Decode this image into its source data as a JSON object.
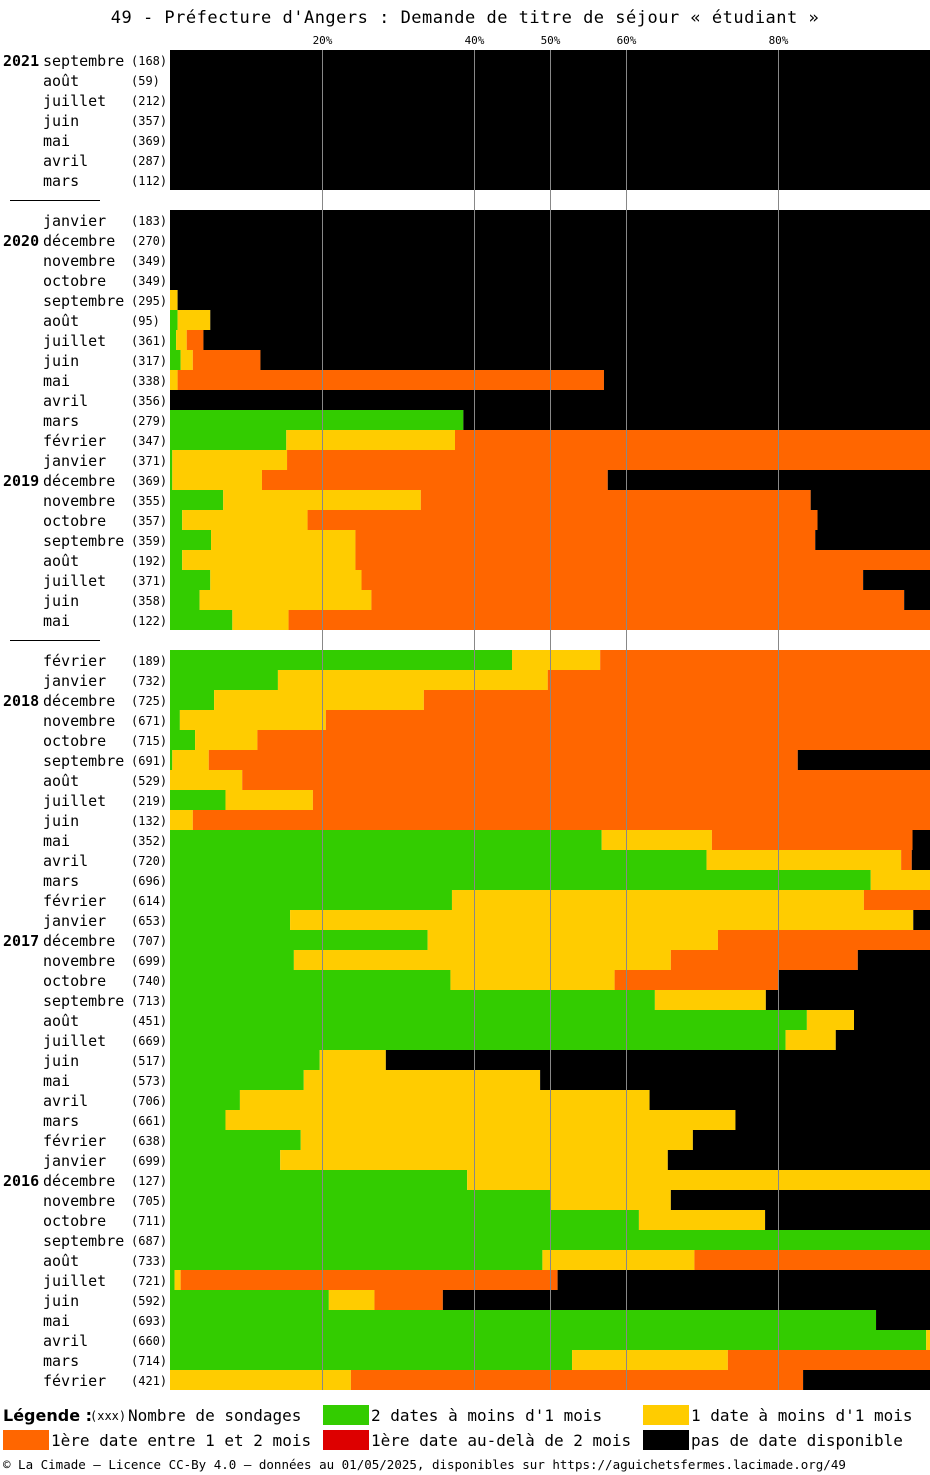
{
  "title": "49 - Préfecture d'Angers : Demande de titre de séjour « étudiant »",
  "colors": {
    "green": "#33cc00",
    "yellow": "#ffcc00",
    "orange": "#ff6600",
    "red": "#dd0000",
    "black": "#000000"
  },
  "legend": {
    "title": "Légende :",
    "count_marker": "(xxx)",
    "count_label": "Nombre de sondages",
    "items": [
      {
        "key": "green",
        "label": "2 dates à moins d'1 mois"
      },
      {
        "key": "yellow",
        "label": "1 date à moins d'1 mois"
      },
      {
        "key": "orange",
        "label": "1ère date entre 1 et 2 mois"
      },
      {
        "key": "red",
        "label": "1ère date au-delà de 2 mois"
      },
      {
        "key": "black",
        "label": "pas de date disponible"
      }
    ]
  },
  "footer": "© La Cimade – Licence CC-By 4.0 – données au 01/05/2025, disponibles sur https://aguichetsfermes.lacimade.org/49",
  "chart_data": {
    "type": "bar",
    "orientation": "horizontal-stacked-percent",
    "xlim": [
      0,
      100
    ],
    "xticks": [
      20,
      40,
      50,
      60,
      80
    ],
    "xtick_labels": [
      "20%",
      "40%",
      "50%",
      "60%",
      "80%"
    ],
    "grid": true,
    "series_order": [
      "green",
      "yellow",
      "orange",
      "red",
      "black"
    ],
    "rows": [
      {
        "year": "2021",
        "month": "septembre",
        "n": "(168)",
        "pct": [
          0,
          0,
          0,
          0,
          100
        ]
      },
      {
        "year": "",
        "month": "août",
        "n": "(59)",
        "pct": [
          0,
          0,
          0,
          0,
          100
        ]
      },
      {
        "year": "",
        "month": "juillet",
        "n": "(212)",
        "pct": [
          0,
          0,
          0,
          0,
          100
        ]
      },
      {
        "year": "",
        "month": "juin",
        "n": "(357)",
        "pct": [
          0,
          0,
          0,
          0,
          100
        ]
      },
      {
        "year": "",
        "month": "mai",
        "n": "(369)",
        "pct": [
          0,
          0,
          0,
          0,
          100
        ]
      },
      {
        "year": "",
        "month": "avril",
        "n": "(287)",
        "pct": [
          0,
          0,
          0,
          0,
          100
        ]
      },
      {
        "year": "",
        "month": "mars",
        "n": "(112)",
        "pct": [
          0,
          0,
          0,
          0,
          100
        ]
      },
      {
        "gap": true
      },
      {
        "year": "",
        "month": "janvier",
        "n": "(183)",
        "pct": [
          0,
          0,
          0,
          0,
          100
        ]
      },
      {
        "year": "2020",
        "month": "décembre",
        "n": "(270)",
        "pct": [
          0,
          0,
          0,
          0,
          100
        ]
      },
      {
        "year": "",
        "month": "novembre",
        "n": "(349)",
        "pct": [
          0,
          0,
          0,
          0,
          100
        ]
      },
      {
        "year": "",
        "month": "octobre",
        "n": "(349)",
        "pct": [
          0,
          0,
          0,
          0,
          100
        ]
      },
      {
        "year": "",
        "month": "septembre",
        "n": "(295)",
        "pct": [
          0,
          1,
          0,
          0,
          99
        ]
      },
      {
        "year": "",
        "month": "août",
        "n": "(95)",
        "pct": [
          1,
          4.3,
          0,
          0,
          94.7
        ]
      },
      {
        "year": "",
        "month": "juillet",
        "n": "(361)",
        "pct": [
          0.8,
          1.4,
          2.2,
          0,
          95.6
        ]
      },
      {
        "year": "",
        "month": "juin",
        "n": "(317)",
        "pct": [
          1.4,
          1.6,
          8.9,
          0,
          88.1
        ]
      },
      {
        "year": "",
        "month": "mai",
        "n": "(338)",
        "pct": [
          0,
          1,
          56.1,
          0,
          42.9
        ]
      },
      {
        "year": "",
        "month": "avril",
        "n": "(356)",
        "pct": [
          0,
          0,
          0,
          0,
          100
        ]
      },
      {
        "year": "",
        "month": "mars",
        "n": "(279)",
        "pct": [
          38.6,
          0,
          0,
          0,
          61.4
        ]
      },
      {
        "year": "",
        "month": "février",
        "n": "(347)",
        "pct": [
          15.3,
          22.2,
          62.5,
          0,
          0
        ]
      },
      {
        "year": "",
        "month": "janvier",
        "n": "(371)",
        "pct": [
          0.3,
          15.1,
          84.6,
          0,
          0
        ]
      },
      {
        "year": "2019",
        "month": "décembre",
        "n": "(369)",
        "pct": [
          0.3,
          11.8,
          45.5,
          0,
          42.4
        ]
      },
      {
        "year": "",
        "month": "novembre",
        "n": "(355)",
        "pct": [
          7,
          26,
          51.3,
          0,
          15.7
        ]
      },
      {
        "year": "",
        "month": "octobre",
        "n": "(357)",
        "pct": [
          1.6,
          16.5,
          67.1,
          0,
          14.8
        ]
      },
      {
        "year": "",
        "month": "septembre",
        "n": "(359)",
        "pct": [
          5.4,
          19,
          60.5,
          0,
          15.1
        ]
      },
      {
        "year": "",
        "month": "août",
        "n": "(192)",
        "pct": [
          1.6,
          22.8,
          75.6,
          0,
          0
        ]
      },
      {
        "year": "",
        "month": "juillet",
        "n": "(371)",
        "pct": [
          5.3,
          19.9,
          66,
          0,
          8.8
        ]
      },
      {
        "year": "",
        "month": "juin",
        "n": "(358)",
        "pct": [
          3.9,
          22.6,
          70.1,
          0,
          3.4
        ]
      },
      {
        "year": "",
        "month": "mai",
        "n": "(122)",
        "pct": [
          8.2,
          7.4,
          84.4,
          0,
          0
        ]
      },
      {
        "gap": true
      },
      {
        "year": "",
        "month": "février",
        "n": "(189)",
        "pct": [
          45,
          11.6,
          43.4,
          0,
          0
        ]
      },
      {
        "year": "",
        "month": "janvier",
        "n": "(732)",
        "pct": [
          14.2,
          35.5,
          50.3,
          0,
          0
        ]
      },
      {
        "year": "2018",
        "month": "décembre",
        "n": "(725)",
        "pct": [
          5.8,
          27.6,
          66.6,
          0,
          0
        ]
      },
      {
        "year": "",
        "month": "novembre",
        "n": "(671)",
        "pct": [
          1.3,
          19.2,
          79.5,
          0,
          0
        ]
      },
      {
        "year": "",
        "month": "octobre",
        "n": "(715)",
        "pct": [
          3.3,
          8.2,
          88.5,
          0,
          0
        ]
      },
      {
        "year": "",
        "month": "septembre",
        "n": "(691)",
        "pct": [
          0.3,
          4.8,
          77.5,
          0,
          17.4
        ]
      },
      {
        "year": "",
        "month": "août",
        "n": "(529)",
        "pct": [
          0,
          9.5,
          90.5,
          0,
          0
        ]
      },
      {
        "year": "",
        "month": "juillet",
        "n": "(219)",
        "pct": [
          7.3,
          11.5,
          81.2,
          0,
          0
        ]
      },
      {
        "year": "",
        "month": "juin",
        "n": "(132)",
        "pct": [
          0,
          3,
          97,
          0,
          0
        ]
      },
      {
        "year": "",
        "month": "mai",
        "n": "(352)",
        "pct": [
          56.8,
          14.5,
          26.4,
          0,
          2.3
        ]
      },
      {
        "year": "",
        "month": "avril",
        "n": "(720)",
        "pct": [
          70.6,
          25.6,
          1.4,
          0,
          2.4
        ]
      },
      {
        "year": "",
        "month": "mars",
        "n": "(696)",
        "pct": [
          92.2,
          7.8,
          0,
          0,
          0
        ]
      },
      {
        "year": "",
        "month": "février",
        "n": "(614)",
        "pct": [
          37.1,
          54.2,
          8.7,
          0,
          0
        ]
      },
      {
        "year": "",
        "month": "janvier",
        "n": "(653)",
        "pct": [
          15.8,
          82,
          0,
          0,
          2.2
        ]
      },
      {
        "year": "2017",
        "month": "décembre",
        "n": "(707)",
        "pct": [
          33.9,
          38.2,
          27.9,
          0,
          0
        ]
      },
      {
        "year": "",
        "month": "novembre",
        "n": "(699)",
        "pct": [
          16.3,
          49.6,
          24.6,
          0,
          9.5
        ]
      },
      {
        "year": "",
        "month": "octobre",
        "n": "(740)",
        "pct": [
          36.9,
          21.6,
          21.6,
          0,
          19.9
        ]
      },
      {
        "year": "",
        "month": "septembre",
        "n": "(713)",
        "pct": [
          63.8,
          14.6,
          0,
          0,
          21.6
        ]
      },
      {
        "year": "",
        "month": "août",
        "n": "(451)",
        "pct": [
          83.8,
          6.2,
          0,
          0,
          10
        ]
      },
      {
        "year": "",
        "month": "juillet",
        "n": "(669)",
        "pct": [
          81,
          6.6,
          0,
          0,
          12.4
        ]
      },
      {
        "year": "",
        "month": "juin",
        "n": "(517)",
        "pct": [
          19.7,
          8.7,
          0,
          0,
          71.6
        ]
      },
      {
        "year": "",
        "month": "mai",
        "n": "(573)",
        "pct": [
          17.6,
          31.1,
          0,
          0,
          51.3
        ]
      },
      {
        "year": "",
        "month": "avril",
        "n": "(706)",
        "pct": [
          9.2,
          53.9,
          0,
          0,
          36.9
        ]
      },
      {
        "year": "",
        "month": "mars",
        "n": "(661)",
        "pct": [
          7.3,
          67.1,
          0,
          0,
          25.6
        ]
      },
      {
        "year": "",
        "month": "février",
        "n": "(638)",
        "pct": [
          17.2,
          51.6,
          0,
          0,
          31.2
        ]
      },
      {
        "year": "",
        "month": "janvier",
        "n": "(699)",
        "pct": [
          14.5,
          51,
          0,
          0,
          34.5
        ]
      },
      {
        "year": "2016",
        "month": "décembre",
        "n": "(127)",
        "pct": [
          39.1,
          60.9,
          0,
          0,
          0
        ]
      },
      {
        "year": "",
        "month": "novembre",
        "n": "(705)",
        "pct": [
          50,
          15.9,
          0,
          0,
          34.1
        ]
      },
      {
        "year": "",
        "month": "octobre",
        "n": "(711)",
        "pct": [
          61.7,
          16.6,
          0,
          0,
          21.7
        ]
      },
      {
        "year": "",
        "month": "septembre",
        "n": "(687)",
        "pct": [
          100,
          0,
          0,
          0,
          0
        ]
      },
      {
        "year": "",
        "month": "août",
        "n": "(733)",
        "pct": [
          49,
          20,
          31,
          0,
          0
        ]
      },
      {
        "year": "",
        "month": "juillet",
        "n": "(721)",
        "pct": [
          0.6,
          0.8,
          49.6,
          0,
          49
        ]
      },
      {
        "year": "",
        "month": "juin",
        "n": "(592)",
        "pct": [
          20.9,
          6,
          9,
          0,
          64.1
        ]
      },
      {
        "year": "",
        "month": "mai",
        "n": "(693)",
        "pct": [
          92.9,
          0,
          0,
          0,
          7.1
        ]
      },
      {
        "year": "",
        "month": "avril",
        "n": "(660)",
        "pct": [
          99.5,
          0.5,
          0,
          0,
          0
        ]
      },
      {
        "year": "",
        "month": "mars",
        "n": "(714)",
        "pct": [
          52.9,
          20.5,
          26.6,
          0,
          0
        ]
      },
      {
        "year": "",
        "month": "février",
        "n": "(421)",
        "pct": [
          0,
          23.8,
          59.5,
          0,
          16.7
        ]
      }
    ]
  }
}
